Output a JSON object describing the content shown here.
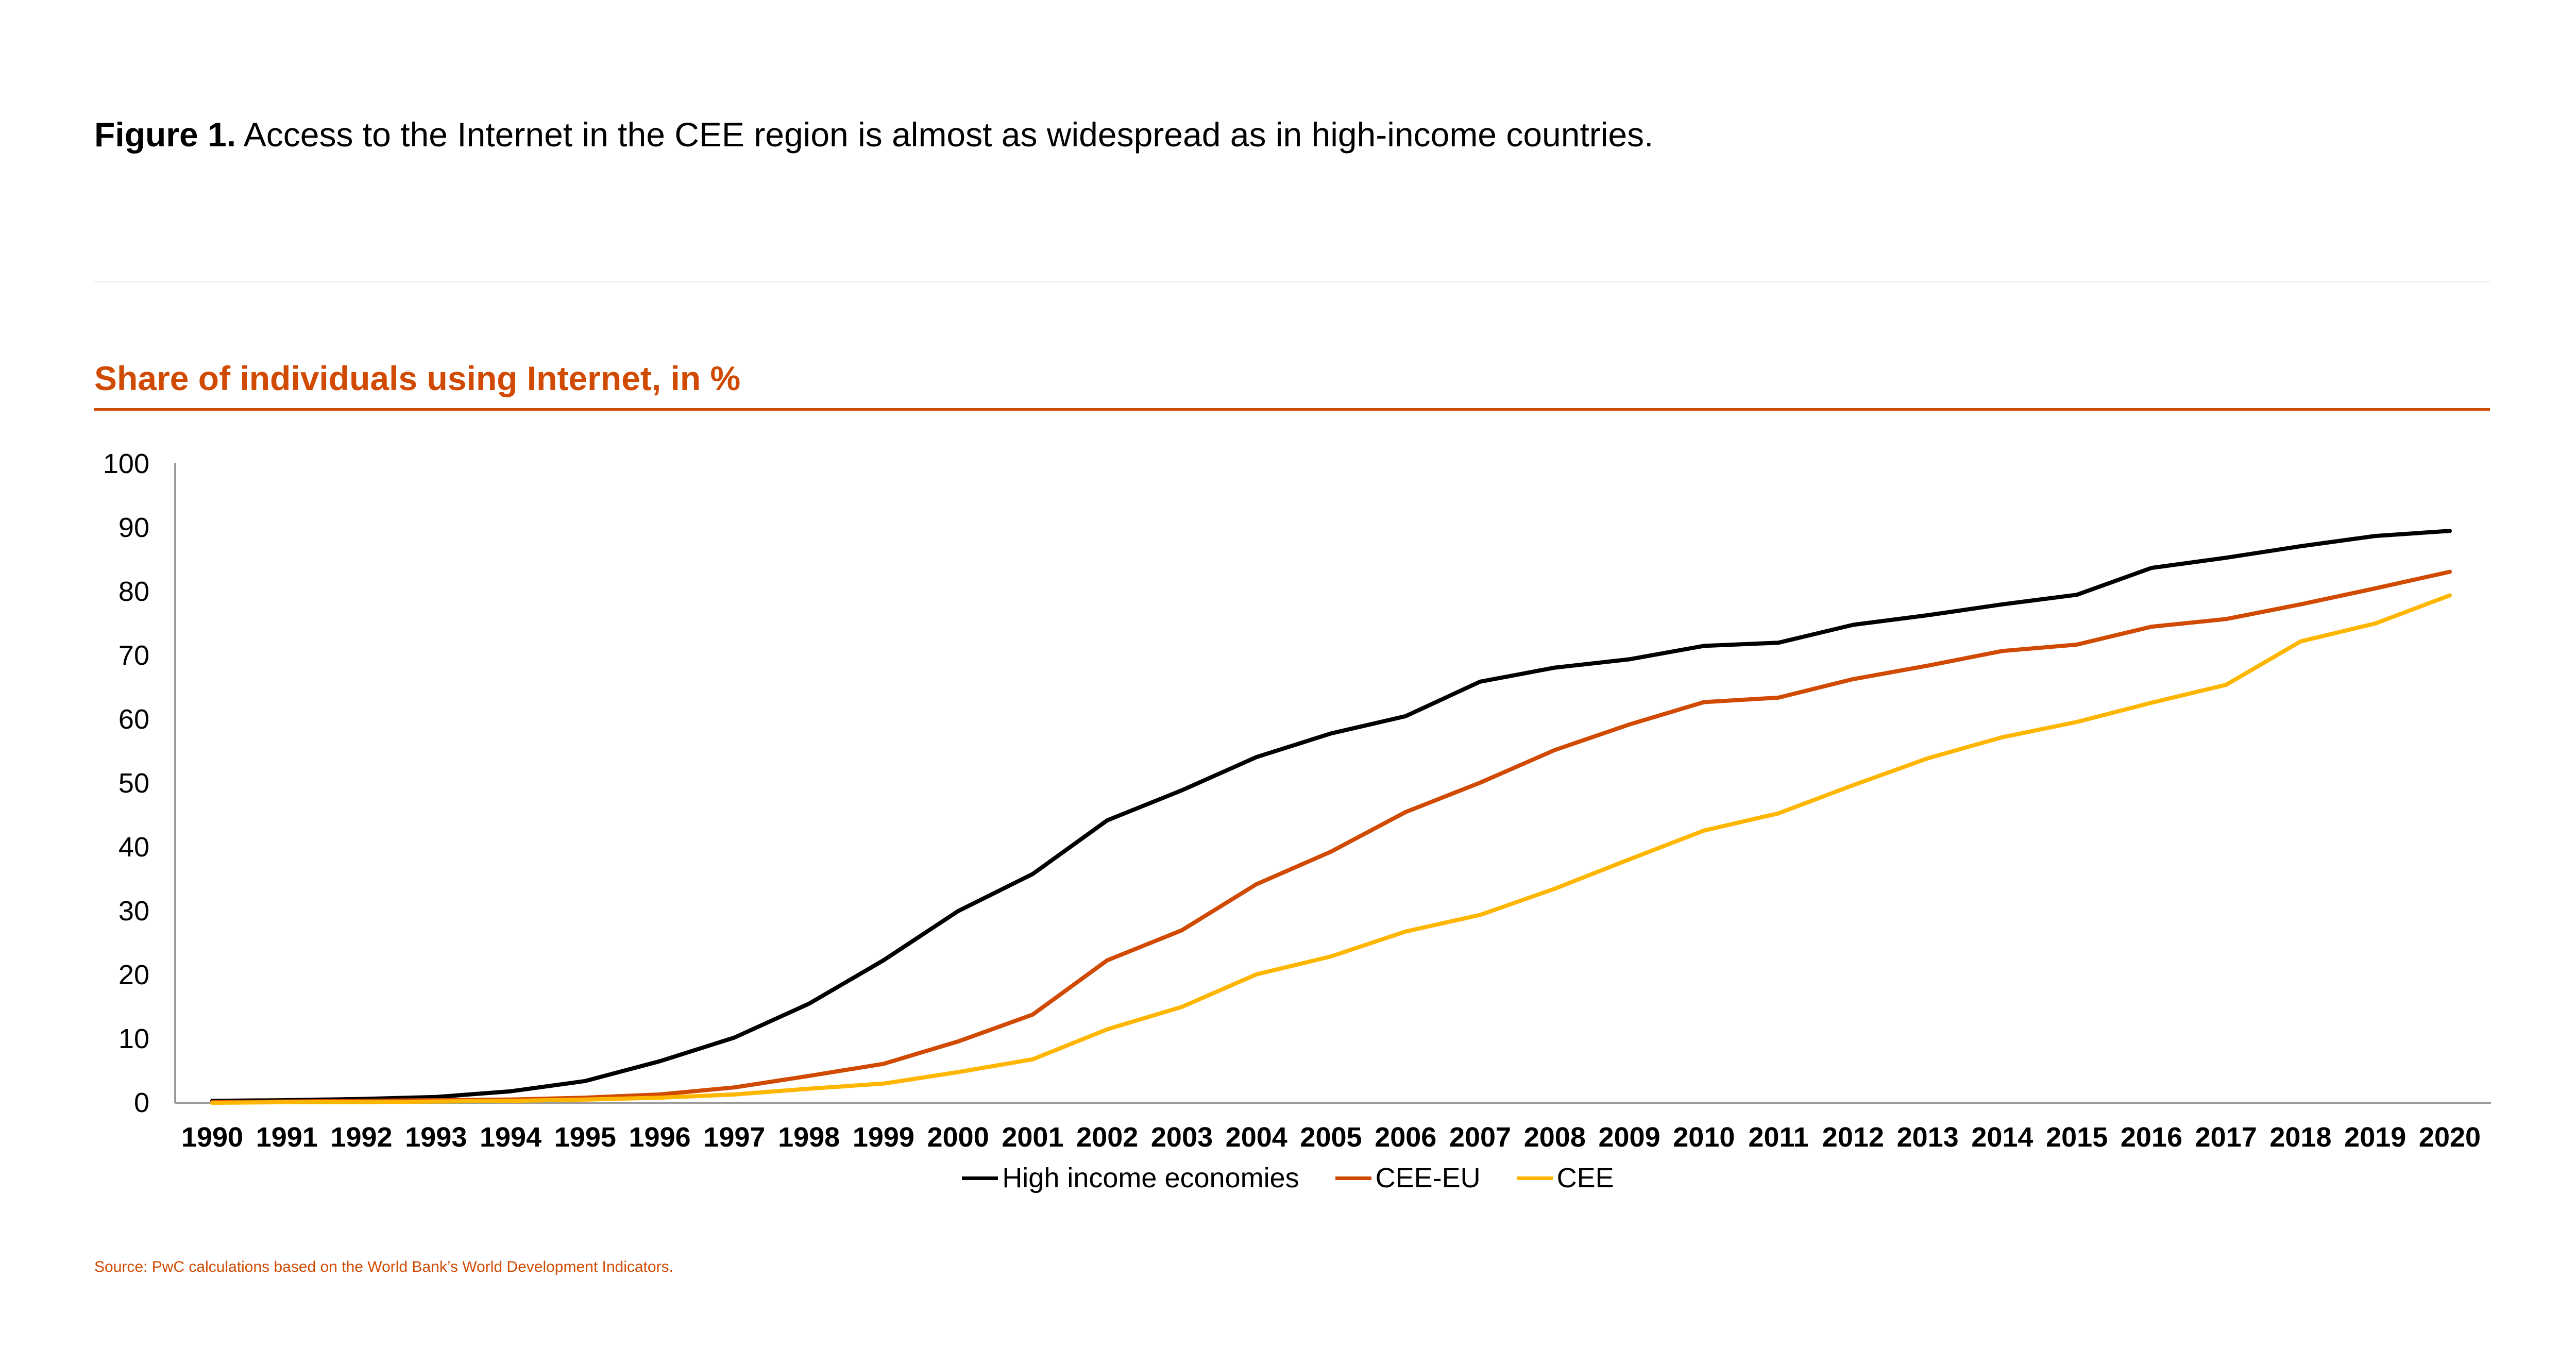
{
  "figure": {
    "label": "Figure 1.",
    "caption": "Access to the Internet in the CEE region is almost as widespread as in high-income countries."
  },
  "source": "Source: PwC calculations based on the World Bank’s World Development Indicators.",
  "colors": {
    "accent": "#d04a02",
    "high_income": "#000000",
    "cee_eu": "#d04a02",
    "cee": "#ffb600"
  },
  "chart_data": {
    "type": "line",
    "title": "Share of individuals using Internet, in %",
    "xlabel": "",
    "ylabel": "",
    "ylim": [
      0,
      100
    ],
    "yticks": [
      0,
      10,
      20,
      30,
      40,
      50,
      60,
      70,
      80,
      90,
      100
    ],
    "grid": false,
    "legend_position": "bottom",
    "categories": [
      "1990",
      "1991",
      "1992",
      "1993",
      "1994",
      "1995",
      "1996",
      "1997",
      "1998",
      "1999",
      "2000",
      "2001",
      "2002",
      "2003",
      "2004",
      "2005",
      "2006",
      "2007",
      "2008",
      "2009",
      "2010",
      "2011",
      "2012",
      "2013",
      "2014",
      "2015",
      "2016",
      "2017",
      "2018",
      "2019",
      "2020"
    ],
    "series": [
      {
        "name": "High income economies",
        "color": "#000000",
        "values": [
          0.3,
          0.4,
          0.6,
          0.9,
          1.8,
          3.4,
          6.5,
          10.2,
          15.5,
          22.3,
          30.0,
          35.8,
          44.2,
          48.9,
          54.1,
          57.8,
          60.5,
          65.9,
          68.1,
          69.4,
          71.5,
          72.0,
          74.8,
          76.3,
          78.0,
          79.5,
          83.7,
          85.3,
          87.1,
          88.7,
          89.5
        ]
      },
      {
        "name": "CEE-EU",
        "color": "#d04a02",
        "values": [
          0.1,
          0.2,
          0.3,
          0.4,
          0.5,
          0.8,
          1.3,
          2.4,
          4.2,
          6.1,
          9.6,
          13.8,
          22.3,
          27.0,
          34.2,
          39.3,
          45.5,
          50.1,
          55.2,
          59.2,
          62.7,
          63.4,
          66.3,
          68.4,
          70.7,
          71.7,
          74.5,
          75.7,
          78.0,
          80.5,
          83.1
        ]
      },
      {
        "name": "CEE",
        "color": "#ffb600",
        "values": [
          0.0,
          0.1,
          0.1,
          0.2,
          0.3,
          0.5,
          0.8,
          1.3,
          2.2,
          3.0,
          4.8,
          6.8,
          11.5,
          15.0,
          20.1,
          22.9,
          26.8,
          29.4,
          33.5,
          38.1,
          42.6,
          45.3,
          49.7,
          53.9,
          57.2,
          59.6,
          62.6,
          65.4,
          72.2,
          75.0,
          79.4
        ]
      }
    ]
  }
}
